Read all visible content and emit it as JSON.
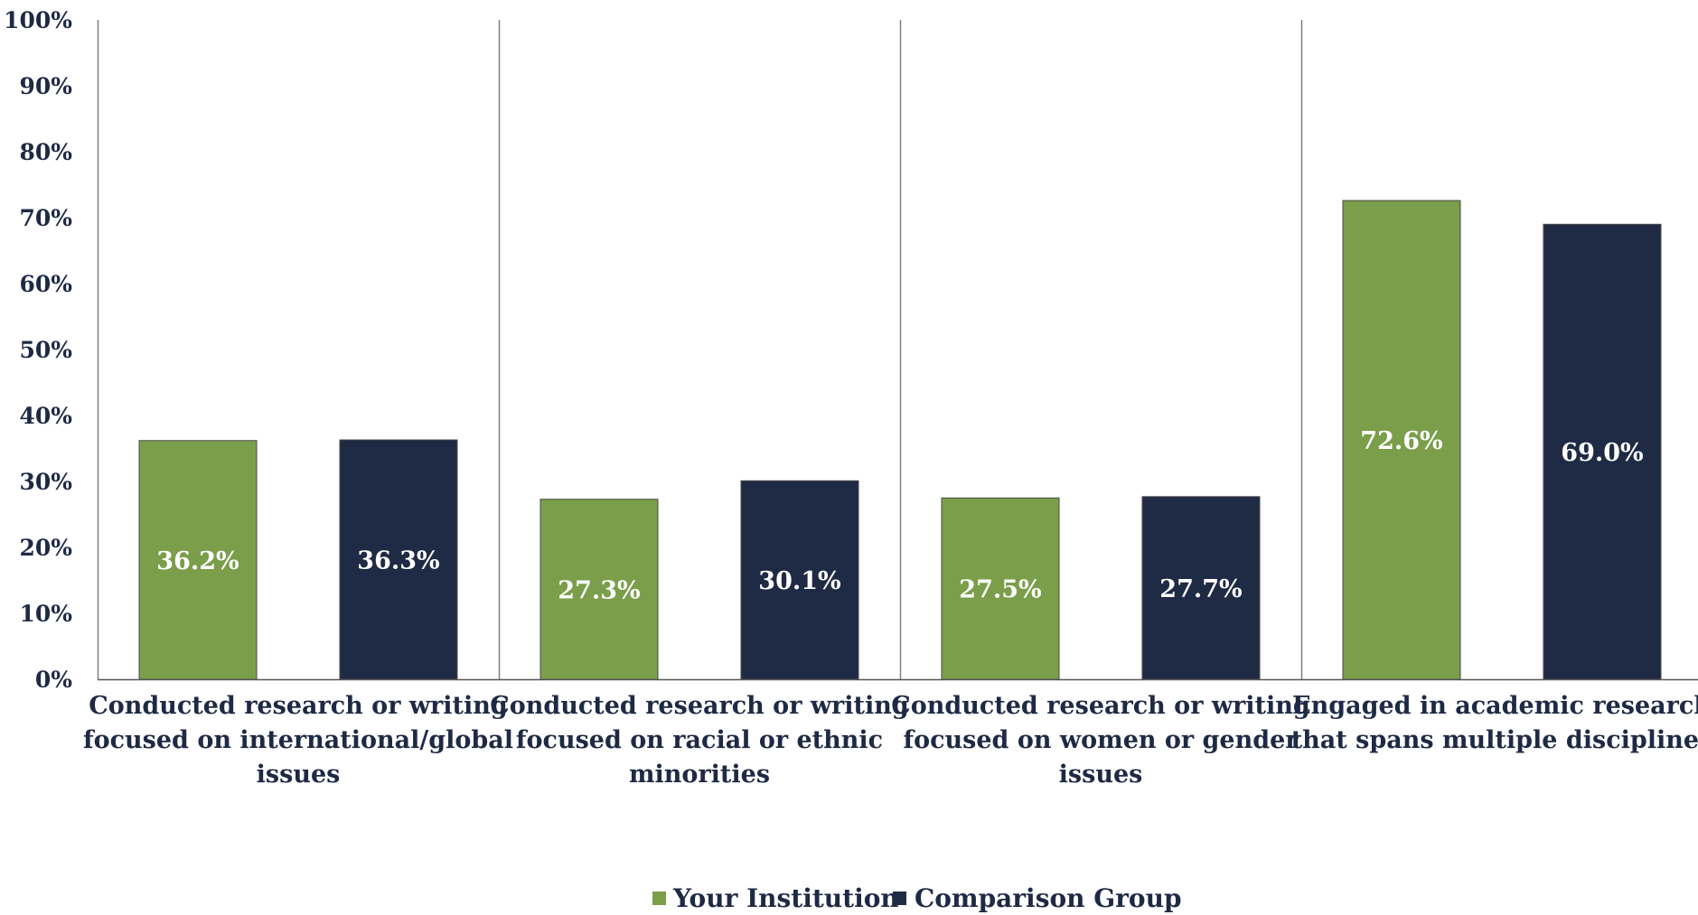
{
  "chart_data": {
    "type": "bar",
    "categories": [
      "Conducted research or writing focused on international/global issues",
      "Conducted research or writing focused on racial or ethnic minorities",
      "Conducted research or writing focused on women or gender issues",
      "Engaged in academic research that spans multiple disciplines"
    ],
    "category_lines": [
      [
        "Conducted research or writing",
        "focused on international/global",
        "issues"
      ],
      [
        "Conducted research or writing",
        "focused on racial or ethnic",
        "minorities"
      ],
      [
        "Conducted research or writing",
        "focused on women or gender",
        "issues"
      ],
      [
        "Engaged in academic research",
        "that spans multiple disciplines"
      ]
    ],
    "series": [
      {
        "name": "Your Institution",
        "color": "#7a9e4a",
        "values": [
          36.2,
          27.3,
          27.5,
          72.6
        ],
        "labels": [
          "36.2%",
          "27.3%",
          "27.5%",
          "72.6%"
        ]
      },
      {
        "name": "Comparison Group",
        "color": "#1f2a44",
        "values": [
          36.3,
          30.1,
          27.7,
          69.0
        ],
        "labels": [
          "36.3%",
          "30.1%",
          "27.7%",
          "69.0%"
        ]
      }
    ],
    "ylim": [
      0,
      100
    ],
    "yticks": [
      "0%",
      "10%",
      "20%",
      "30%",
      "40%",
      "50%",
      "60%",
      "70%",
      "80%",
      "90%",
      "100%"
    ],
    "grid": false,
    "legend_position": "bottom-center",
    "text_color": "#1e2a45",
    "axis_color": "#808080"
  }
}
